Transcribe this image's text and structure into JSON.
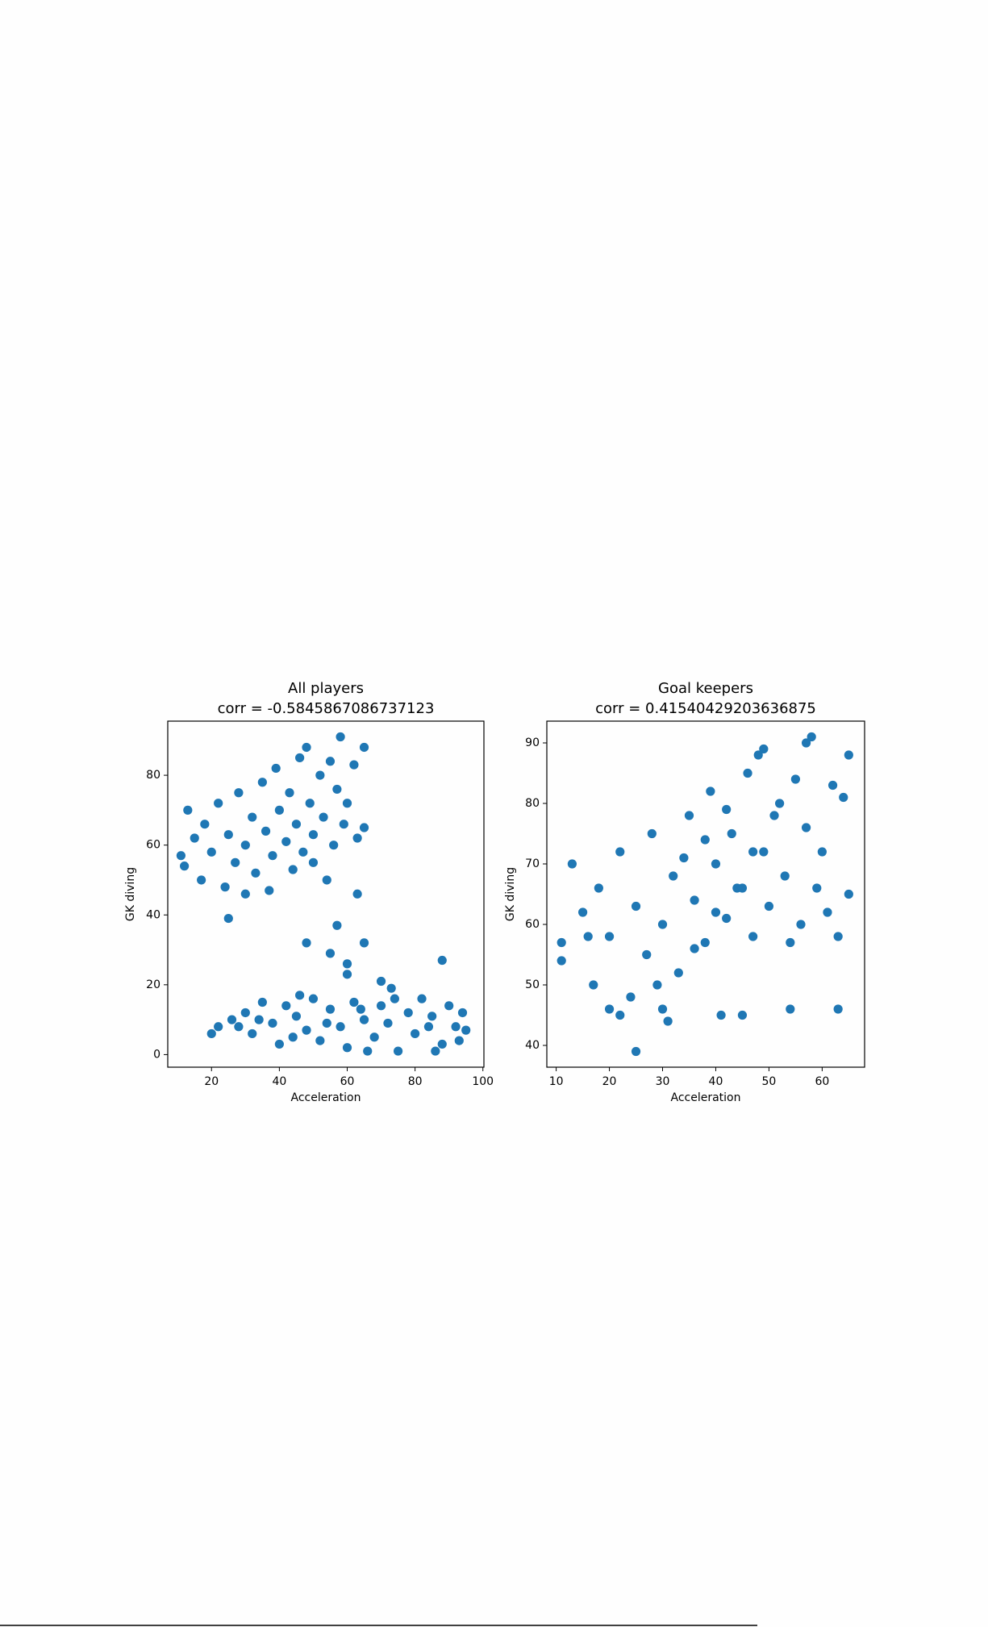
{
  "chart_data": [
    {
      "type": "scatter",
      "title": "All players",
      "subtitle": "corr = -0.5845867086737123",
      "xlabel": "Acceleration",
      "ylabel": "GK diving",
      "color": "#1f77b4",
      "grid": false,
      "xlim": [
        7.1,
        100.3
      ],
      "ylim": [
        -3.6,
        95.5
      ],
      "xticks": [
        20,
        40,
        60,
        80,
        100
      ],
      "yticks": [
        0,
        20,
        40,
        60,
        80
      ],
      "x": [
        30,
        32,
        35,
        38,
        40,
        42,
        45,
        48,
        50,
        52,
        55,
        58,
        60,
        62,
        65,
        68,
        70,
        72,
        75,
        78,
        80,
        82,
        85,
        88,
        90,
        92,
        94,
        95,
        34,
        44,
        54,
        64,
        74,
        84,
        93,
        28,
        26,
        86,
        66,
        46,
        20,
        22,
        25,
        48,
        57,
        55,
        60,
        65,
        63,
        88,
        70,
        60,
        73,
        11,
        12,
        13,
        15,
        17,
        18,
        20,
        22,
        24,
        25,
        27,
        28,
        30,
        30,
        32,
        33,
        35,
        36,
        38,
        39,
        40,
        42,
        43,
        45,
        46,
        47,
        48,
        49,
        50,
        52,
        53,
        55,
        56,
        57,
        58,
        59,
        60,
        62,
        63,
        65,
        65,
        54,
        37,
        44,
        50
      ],
      "values": [
        12,
        6,
        15,
        9,
        3,
        14,
        11,
        7,
        16,
        4,
        13,
        8,
        2,
        15,
        10,
        5,
        14,
        9,
        1,
        12,
        6,
        16,
        11,
        3,
        14,
        8,
        12,
        7,
        10,
        5,
        9,
        13,
        16,
        8,
        4,
        8,
        10,
        1,
        1,
        17,
        6,
        8,
        39,
        32,
        37,
        29,
        26,
        32,
        46,
        27,
        21,
        23,
        19,
        57,
        54,
        70,
        62,
        50,
        66,
        58,
        72,
        48,
        63,
        55,
        75,
        60,
        46,
        68,
        52,
        78,
        64,
        57,
        82,
        70,
        61,
        75,
        66,
        85,
        58,
        88,
        72,
        63,
        80,
        68,
        84,
        60,
        76,
        91,
        66,
        72,
        83,
        62,
        88,
        65,
        50,
        47,
        53,
        55
      ]
    },
    {
      "type": "scatter",
      "title": "Goal keepers",
      "subtitle": "corr = 0.41540429203636875",
      "xlabel": "Acceleration",
      "ylabel": "GK diving",
      "color": "#1f77b4",
      "grid": false,
      "xlim": [
        8.24,
        67.98
      ],
      "ylim": [
        36.4,
        93.6
      ],
      "xticks": [
        10,
        20,
        30,
        40,
        50,
        60
      ],
      "yticks": [
        40,
        50,
        60,
        70,
        80,
        90
      ],
      "x": [
        11,
        11,
        13,
        15,
        16,
        17,
        18,
        20,
        20,
        22,
        22,
        24,
        25,
        25,
        27,
        28,
        29,
        30,
        30,
        31,
        32,
        33,
        34,
        35,
        36,
        36,
        38,
        38,
        39,
        40,
        40,
        41,
        42,
        42,
        43,
        44,
        45,
        45,
        46,
        47,
        47,
        48,
        49,
        49,
        50,
        51,
        52,
        53,
        54,
        54,
        55,
        56,
        57,
        57,
        58,
        59,
        60,
        61,
        62,
        63,
        63,
        64,
        65,
        65
      ],
      "values": [
        57,
        54,
        70,
        62,
        58,
        50,
        66,
        46,
        58,
        45,
        72,
        48,
        39,
        63,
        55,
        75,
        50,
        60,
        46,
        44,
        68,
        52,
        71,
        78,
        64,
        56,
        57,
        74,
        82,
        70,
        62,
        45,
        61,
        79,
        75,
        66,
        45,
        66,
        85,
        58,
        72,
        88,
        89,
        72,
        63,
        78,
        80,
        68,
        46,
        57,
        84,
        60,
        76,
        90,
        91,
        66,
        72,
        62,
        83,
        46,
        58,
        81,
        88,
        65
      ]
    }
  ]
}
